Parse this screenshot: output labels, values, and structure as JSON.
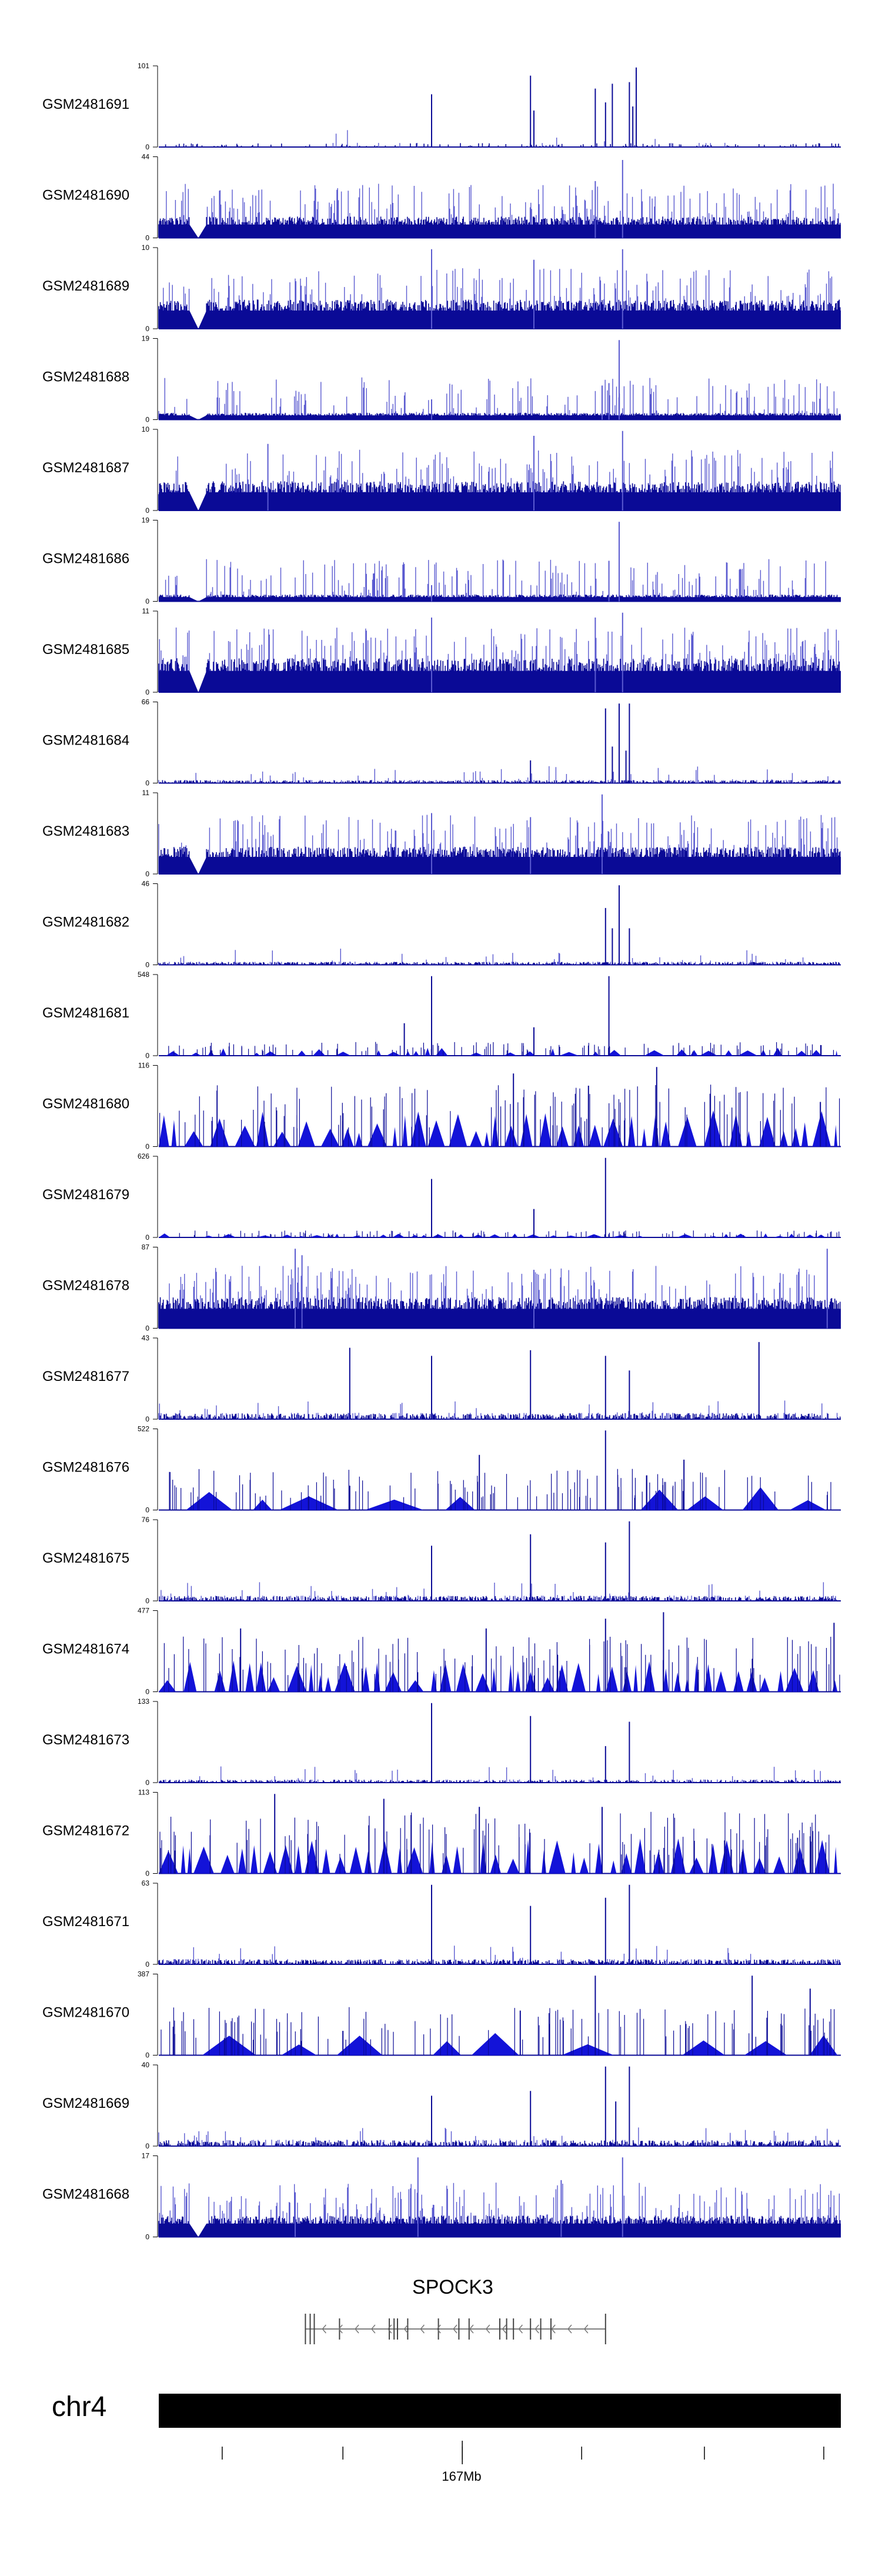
{
  "chart_data": {
    "type": "area",
    "tracks": [
      {
        "label": "GSM2481691",
        "ymax": 101,
        "ymin": 0,
        "style": "spiky",
        "density": 0.15,
        "base": 0.04,
        "gap": false,
        "peaks": [
          [
            0.4,
            0.65
          ],
          [
            0.545,
            0.88
          ],
          [
            0.55,
            0.45
          ],
          [
            0.64,
            0.72
          ],
          [
            0.655,
            0.55
          ],
          [
            0.665,
            0.78
          ],
          [
            0.69,
            0.8
          ],
          [
            0.695,
            0.5
          ],
          [
            0.7,
            0.98
          ]
        ]
      },
      {
        "label": "GSM2481690",
        "ymax": 44,
        "ymin": 0,
        "style": "dense",
        "density": 0.95,
        "base": 0.22,
        "gap": true,
        "peaks": [
          [
            0.68,
            0.96
          ],
          [
            0.64,
            0.7
          ]
        ]
      },
      {
        "label": "GSM2481689",
        "ymax": 10,
        "ymin": 0,
        "style": "dense",
        "density": 0.95,
        "base": 0.3,
        "gap": true,
        "peaks": [
          [
            0.4,
            0.98
          ],
          [
            0.68,
            0.98
          ],
          [
            0.55,
            0.85
          ]
        ]
      },
      {
        "label": "GSM2481688",
        "ymax": 19,
        "ymin": 0,
        "style": "dense",
        "density": 0.9,
        "base": 0.07,
        "gap": true,
        "peaks": [
          [
            0.675,
            0.98
          ],
          [
            0.65,
            0.42
          ],
          [
            0.66,
            0.45
          ],
          [
            0.4,
            0.25
          ]
        ]
      },
      {
        "label": "GSM2481687",
        "ymax": 10,
        "ymin": 0,
        "style": "dense",
        "density": 0.95,
        "base": 0.3,
        "gap": true,
        "peaks": [
          [
            0.68,
            0.98
          ],
          [
            0.16,
            0.82
          ],
          [
            0.55,
            0.92
          ]
        ]
      },
      {
        "label": "GSM2481686",
        "ymax": 19,
        "ymin": 0,
        "style": "dense",
        "density": 0.9,
        "base": 0.07,
        "gap": true,
        "peaks": [
          [
            0.675,
            0.98
          ],
          [
            0.66,
            0.5
          ],
          [
            0.4,
            0.2
          ]
        ]
      },
      {
        "label": "GSM2481685",
        "ymax": 11,
        "ymin": 0,
        "style": "dense",
        "density": 0.95,
        "base": 0.35,
        "gap": true,
        "peaks": [
          [
            0.68,
            0.98
          ],
          [
            0.4,
            0.92
          ],
          [
            0.64,
            0.92
          ]
        ]
      },
      {
        "label": "GSM2481684",
        "ymax": 66,
        "ymin": 0,
        "style": "spiky",
        "density": 0.6,
        "base": 0.03,
        "gap": false,
        "peaks": [
          [
            0.545,
            0.28
          ],
          [
            0.655,
            0.92
          ],
          [
            0.665,
            0.45
          ],
          [
            0.675,
            0.98
          ],
          [
            0.69,
            0.98
          ],
          [
            0.685,
            0.4
          ]
        ]
      },
      {
        "label": "GSM2481683",
        "ymax": 11,
        "ymin": 0,
        "style": "dense",
        "density": 0.95,
        "base": 0.28,
        "gap": true,
        "peaks": [
          [
            0.65,
            0.98
          ],
          [
            0.4,
            0.75
          ],
          [
            0.545,
            0.7
          ]
        ]
      },
      {
        "label": "GSM2481682",
        "ymax": 46,
        "ymin": 0,
        "style": "spiky",
        "density": 0.6,
        "base": 0.03,
        "gap": false,
        "peaks": [
          [
            0.655,
            0.7
          ],
          [
            0.665,
            0.45
          ],
          [
            0.675,
            0.98
          ],
          [
            0.69,
            0.45
          ]
        ]
      },
      {
        "label": "GSM2481681",
        "ymax": 548,
        "ymin": 0,
        "style": "triangles",
        "density": 0.55,
        "base": 0.1,
        "gap": false,
        "peaks": [
          [
            0.4,
            0.98
          ],
          [
            0.36,
            0.4
          ],
          [
            0.66,
            0.98
          ],
          [
            0.55,
            0.35
          ]
        ]
      },
      {
        "label": "GSM2481680",
        "ymax": 116,
        "ymin": 0,
        "style": "triangles",
        "density": 0.95,
        "base": 0.45,
        "gap": false,
        "peaks": [
          [
            0.73,
            0.98
          ],
          [
            0.52,
            0.9
          ],
          [
            0.63,
            0.75
          ],
          [
            0.97,
            0.55
          ]
        ]
      },
      {
        "label": "GSM2481679",
        "ymax": 626,
        "ymin": 0,
        "style": "triangles",
        "density": 0.6,
        "base": 0.05,
        "gap": false,
        "peaks": [
          [
            0.655,
            0.98
          ],
          [
            0.4,
            0.72
          ],
          [
            0.55,
            0.35
          ]
        ]
      },
      {
        "label": "GSM2481678",
        "ymax": 87,
        "ymin": 0,
        "style": "dense",
        "density": 0.95,
        "base": 0.32,
        "gap": false,
        "peaks": [
          [
            0.2,
            0.98
          ],
          [
            0.21,
            0.9
          ],
          [
            0.98,
            0.98
          ],
          [
            0.55,
            0.72
          ]
        ]
      },
      {
        "label": "GSM2481677",
        "ymax": 43,
        "ymin": 0,
        "style": "spiky",
        "density": 0.6,
        "base": 0.06,
        "gap": false,
        "peaks": [
          [
            0.88,
            0.95
          ],
          [
            0.545,
            0.85
          ],
          [
            0.655,
            0.78
          ],
          [
            0.4,
            0.78
          ],
          [
            0.28,
            0.88
          ],
          [
            0.69,
            0.6
          ]
        ]
      },
      {
        "label": "GSM2481676",
        "ymax": 522,
        "ymin": 0,
        "style": "bigtri",
        "density": 0.5,
        "base": 0.3,
        "gap": false,
        "peaks": [
          [
            0.655,
            0.98
          ],
          [
            0.77,
            0.62
          ],
          [
            0.47,
            0.68
          ],
          [
            0.28,
            0.3
          ]
        ]
      },
      {
        "label": "GSM2481675",
        "ymax": 76,
        "ymin": 0,
        "style": "spiky",
        "density": 0.6,
        "base": 0.05,
        "gap": false,
        "peaks": [
          [
            0.69,
            0.98
          ],
          [
            0.545,
            0.82
          ],
          [
            0.4,
            0.68
          ],
          [
            0.655,
            0.72
          ]
        ]
      },
      {
        "label": "GSM2481674",
        "ymax": 477,
        "ymin": 0,
        "style": "triangles",
        "density": 0.85,
        "base": 0.4,
        "gap": false,
        "peaks": [
          [
            0.74,
            0.98
          ],
          [
            0.655,
            0.9
          ],
          [
            0.12,
            0.78
          ],
          [
            0.99,
            0.85
          ],
          [
            0.48,
            0.78
          ]
        ]
      },
      {
        "label": "GSM2481673",
        "ymax": 133,
        "ymin": 0,
        "style": "spiky",
        "density": 0.5,
        "base": 0.03,
        "gap": false,
        "peaks": [
          [
            0.4,
            0.98
          ],
          [
            0.545,
            0.82
          ],
          [
            0.69,
            0.75
          ],
          [
            0.655,
            0.45
          ]
        ]
      },
      {
        "label": "GSM2481672",
        "ymax": 113,
        "ymin": 0,
        "style": "triangles",
        "density": 0.95,
        "base": 0.45,
        "gap": false,
        "peaks": [
          [
            0.17,
            0.98
          ],
          [
            0.33,
            0.92
          ],
          [
            0.37,
            0.72
          ],
          [
            0.47,
            0.82
          ],
          [
            0.65,
            0.82
          ]
        ]
      },
      {
        "label": "GSM2481671",
        "ymax": 63,
        "ymin": 0,
        "style": "spiky",
        "density": 0.6,
        "base": 0.05,
        "gap": false,
        "peaks": [
          [
            0.69,
            0.98
          ],
          [
            0.4,
            0.98
          ],
          [
            0.545,
            0.72
          ],
          [
            0.655,
            0.82
          ]
        ]
      },
      {
        "label": "GSM2481670",
        "ymax": 387,
        "ymin": 0,
        "style": "bigtri",
        "density": 0.6,
        "base": 0.35,
        "gap": false,
        "peaks": [
          [
            0.87,
            0.98
          ],
          [
            0.64,
            0.98
          ],
          [
            0.955,
            0.82
          ],
          [
            0.53,
            0.55
          ],
          [
            0.27,
            0.3
          ]
        ]
      },
      {
        "label": "GSM2481669",
        "ymax": 40,
        "ymin": 0,
        "style": "spiky",
        "density": 0.6,
        "base": 0.06,
        "gap": false,
        "peaks": [
          [
            0.655,
            0.98
          ],
          [
            0.69,
            0.98
          ],
          [
            0.545,
            0.68
          ],
          [
            0.4,
            0.62
          ],
          [
            0.67,
            0.55
          ]
        ]
      },
      {
        "label": "GSM2481668",
        "ymax": 17,
        "ymin": 0,
        "style": "dense",
        "density": 0.95,
        "base": 0.22,
        "gap": true,
        "peaks": [
          [
            0.38,
            0.98
          ],
          [
            0.68,
            0.98
          ],
          [
            0.59,
            0.7
          ],
          [
            0.2,
            0.55
          ]
        ]
      }
    ],
    "gene": {
      "name": "SPOCK3",
      "strand": "-"
    },
    "chromosome": "chr4",
    "axis_label": "167Mb",
    "colors": {
      "track": "#0a0a96",
      "track_light": "#5a5ad0",
      "chrom": "#000000"
    }
  }
}
